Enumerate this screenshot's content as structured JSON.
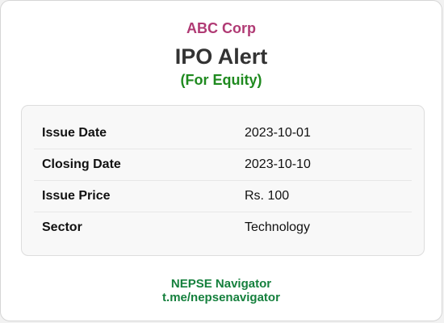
{
  "company": "ABC Corp",
  "title": "IPO Alert",
  "subtitle": "(For Equity)",
  "details": [
    {
      "label": "Issue Date",
      "value": "2023-10-01"
    },
    {
      "label": "Closing Date",
      "value": "2023-10-10"
    },
    {
      "label": "Issue Price",
      "value": "Rs. 100"
    },
    {
      "label": "Sector",
      "value": "Technology"
    }
  ],
  "footer": {
    "brand": "NEPSE Navigator",
    "link": "t.me/nepsenavigator"
  },
  "colors": {
    "company": "#b03a74",
    "subtitle": "#1f8a1f",
    "footer": "#15803d"
  }
}
